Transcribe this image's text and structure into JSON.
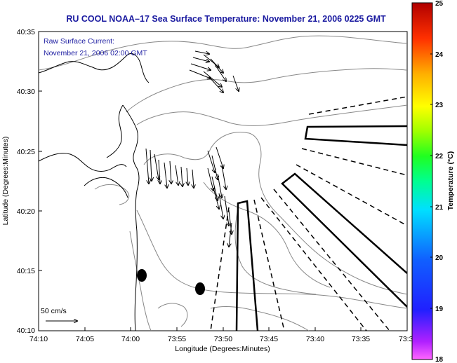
{
  "title": "RU COOL  NOAA–17  Sea Surface Temperature:  November 21, 2006 0225 GMT",
  "annotation": {
    "line1": "Raw Surface Current:",
    "line2": "November 21, 2006 02:00 GMT"
  },
  "scale_label": "50 cm/s",
  "axes": {
    "xlabel": "Longitude (Degrees:Minutes)",
    "ylabel": "Latitude (Degrees:Minutes)",
    "x_ticks": [
      "74:10",
      "74:05",
      "74:00",
      "73:55",
      "73:50",
      "73:45",
      "73:40",
      "73:35",
      "73:3"
    ],
    "y_ticks": [
      "40:35",
      "40:30",
      "40:25",
      "40:20",
      "40:15",
      "40:10"
    ]
  },
  "colorbar": {
    "label": "Temperature (°C)",
    "ticks": [
      "25",
      "24",
      "23",
      "22",
      "21",
      "20",
      "19",
      "18"
    ],
    "range": [
      18,
      25
    ]
  },
  "colors": {
    "text": "#1a1aa0",
    "coast": "#000000",
    "bathy": "#888888"
  }
}
